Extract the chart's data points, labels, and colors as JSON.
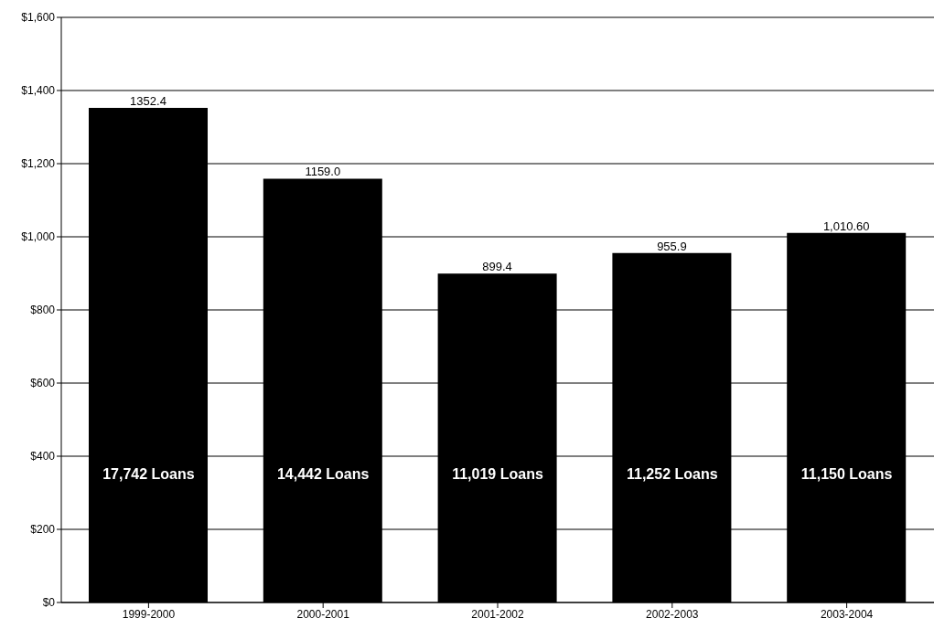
{
  "chart_data": {
    "type": "bar",
    "categories": [
      "1999-2000",
      "2000-2001",
      "2001-2002",
      "2002-2003",
      "2003-2004"
    ],
    "values": [
      1352.4,
      1159.0,
      899.4,
      955.9,
      1010.6
    ],
    "color": "#000000",
    "value_labels": [
      "1352.4",
      "1159.0",
      "899.4",
      "955.9",
      "1,010.60"
    ],
    "ylim": [
      0,
      1600
    ],
    "yticks": [
      {
        "value": 0,
        "label": "$0"
      },
      {
        "value": 200,
        "label": "$200"
      },
      {
        "value": 400,
        "label": "$400"
      },
      {
        "value": 600,
        "label": "$600"
      },
      {
        "value": 800,
        "label": "$800"
      },
      {
        "value": 1000,
        "label": "$1,000"
      },
      {
        "value": 1200,
        "label": "$1,200"
      },
      {
        "value": 1400,
        "label": "$1,400"
      },
      {
        "value": 1600,
        "label": "$1,600"
      }
    ],
    "grid": "y",
    "legend": false,
    "annotations": [
      "17,742 Loans",
      "14,442 Loans",
      "11,019 Loans",
      "11,252 Loans",
      "11,150 Loans"
    ]
  }
}
